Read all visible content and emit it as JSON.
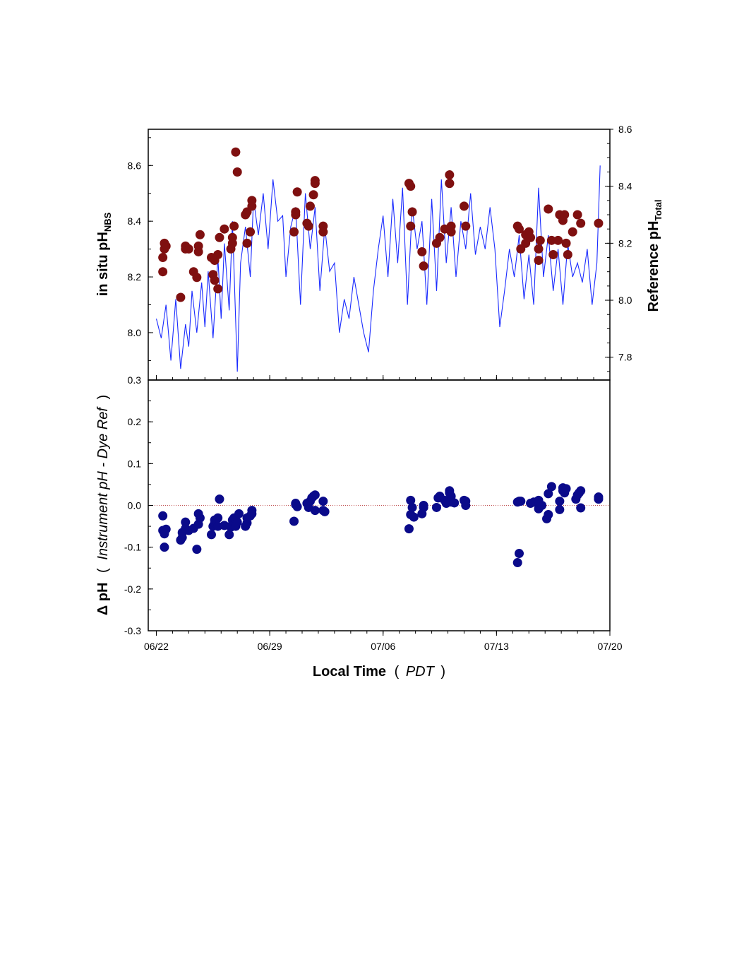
{
  "chart_data": [
    {
      "type": "line+scatter",
      "panel": "top",
      "ylabel_left": {
        "main": "in situ pH",
        "sub": "NBS"
      },
      "ylabel_right": {
        "main": "Reference pH",
        "sub": "Total"
      },
      "ylim_left": [
        7.83,
        8.73
      ],
      "yticks_left": [
        "8.0",
        "8.2",
        "8.4",
        "8.6"
      ],
      "ylim_right": [
        7.72,
        8.6
      ],
      "yticks_right": [
        "7.8",
        "8.0",
        "8.2",
        "8.4",
        "8.6"
      ],
      "xlim_days": [
        -0.5,
        28.0
      ],
      "grid": false,
      "series": [
        {
          "kind": "line",
          "axis": "left",
          "color": "#1a2bff",
          "x": [
            0,
            0.3,
            0.6,
            0.9,
            1.2,
            1.5,
            1.8,
            2.0,
            2.2,
            2.5,
            2.8,
            3.0,
            3.2,
            3.5,
            3.8,
            4.0,
            4.2,
            4.5,
            4.7,
            5.0,
            5.2,
            5.5,
            5.8,
            6.0,
            6.3,
            6.6,
            6.9,
            7.2,
            7.5,
            7.8,
            8.0,
            8.3,
            8.6,
            8.9,
            9.2,
            9.5,
            9.8,
            10.1,
            10.4,
            10.7,
            11.0,
            11.3,
            11.6,
            11.9,
            12.2,
            12.5,
            12.8,
            13.1,
            13.4,
            13.7,
            14.0,
            14.3,
            14.6,
            14.9,
            15.2,
            15.5,
            15.8,
            16.1,
            16.4,
            16.7,
            17.0,
            17.3,
            17.6,
            17.9,
            18.2,
            18.5,
            18.8,
            19.1,
            19.4,
            19.7,
            20.0,
            20.3,
            20.6,
            20.9,
            21.2,
            21.5,
            21.8,
            22.1,
            22.4,
            22.7,
            23.0,
            23.3,
            23.6,
            23.9,
            24.2,
            24.5,
            24.8,
            25.1,
            25.4,
            25.7,
            26.0,
            26.3,
            26.6,
            26.9,
            27.2,
            27.4
          ],
          "values": [
            8.05,
            7.98,
            8.1,
            7.9,
            8.12,
            7.87,
            8.03,
            7.95,
            8.15,
            8.0,
            8.18,
            8.02,
            8.22,
            7.98,
            8.27,
            8.05,
            8.32,
            8.08,
            8.4,
            7.86,
            8.25,
            8.38,
            8.2,
            8.48,
            8.35,
            8.5,
            8.3,
            8.55,
            8.4,
            8.42,
            8.2,
            8.38,
            8.45,
            8.1,
            8.5,
            8.3,
            8.45,
            8.15,
            8.38,
            8.22,
            8.25,
            8.0,
            8.12,
            8.05,
            8.2,
            8.1,
            8.0,
            7.93,
            8.15,
            8.3,
            8.42,
            8.2,
            8.48,
            8.25,
            8.52,
            8.1,
            8.45,
            8.3,
            8.4,
            8.1,
            8.48,
            8.15,
            8.55,
            8.25,
            8.45,
            8.2,
            8.4,
            8.3,
            8.5,
            8.28,
            8.38,
            8.3,
            8.45,
            8.3,
            8.02,
            8.15,
            8.3,
            8.2,
            8.35,
            8.12,
            8.28,
            8.1,
            8.52,
            8.2,
            8.35,
            8.15,
            8.3,
            8.1,
            8.32,
            8.2,
            8.25,
            8.18,
            8.3,
            8.1,
            8.25,
            8.6
          ]
        },
        {
          "kind": "scatter",
          "axis": "right",
          "color": "#7f1010",
          "x": [
            0.4,
            0.5,
            0.5,
            0.6,
            0.4,
            1.5,
            1.8,
            1.8,
            2.0,
            2.3,
            2.5,
            2.6,
            2.6,
            2.7,
            3.4,
            3.5,
            3.6,
            3.6,
            3.8,
            3.8,
            3.9,
            4.2,
            4.6,
            4.7,
            4.7,
            4.8,
            4.9,
            5.0,
            5.5,
            5.6,
            5.6,
            5.8,
            5.9,
            5.9,
            8.5,
            8.6,
            8.6,
            8.7,
            9.3,
            9.4,
            9.5,
            9.7,
            9.8,
            9.8,
            10.3,
            10.3,
            15.6,
            15.7,
            15.7,
            15.8,
            16.4,
            16.5,
            17.3,
            17.5,
            17.8,
            18.1,
            18.1,
            18.1,
            18.2,
            18.2,
            19.0,
            19.1,
            22.3,
            22.4,
            22.5,
            22.8,
            22.8,
            23.0,
            23.1,
            23.6,
            23.6,
            23.7,
            24.2,
            24.4,
            24.5,
            24.8,
            24.9,
            25.1,
            25.2,
            25.3,
            25.4,
            25.7,
            26.0,
            26.2,
            27.3
          ],
          "values": [
            8.15,
            8.18,
            8.2,
            8.19,
            8.1,
            8.01,
            8.18,
            8.19,
            8.18,
            8.1,
            8.08,
            8.17,
            8.19,
            8.23,
            8.15,
            8.09,
            8.14,
            8.07,
            8.04,
            8.16,
            8.22,
            8.25,
            8.18,
            8.22,
            8.2,
            8.26,
            8.52,
            8.45,
            8.3,
            8.2,
            8.31,
            8.24,
            8.33,
            8.35,
            8.24,
            8.31,
            8.3,
            8.38,
            8.27,
            8.26,
            8.33,
            8.37,
            8.41,
            8.42,
            8.26,
            8.24,
            8.41,
            8.4,
            8.26,
            8.31,
            8.17,
            8.12,
            8.2,
            8.22,
            8.25,
            8.44,
            8.41,
            8.41,
            8.24,
            8.26,
            8.33,
            8.26,
            8.26,
            8.25,
            8.18,
            8.2,
            8.23,
            8.24,
            8.22,
            8.14,
            8.18,
            8.21,
            8.32,
            8.21,
            8.16,
            8.21,
            8.3,
            8.28,
            8.3,
            8.2,
            8.16,
            8.24,
            8.3,
            8.27,
            8.27
          ]
        }
      ]
    },
    {
      "type": "scatter",
      "panel": "bottom",
      "ylabel": {
        "prefix": "Δ pH",
        "open": "(",
        "italic": "Instrument pH - Dye Ref",
        "close": ")"
      },
      "ylim": [
        -0.3,
        0.3
      ],
      "yticks": [
        "-0.3",
        "-0.2",
        "-0.1",
        "0.0",
        "0.1",
        "0.2",
        "0.3"
      ],
      "xlim_days": [
        -0.5,
        28.0
      ],
      "xticks": [
        "06/22",
        "06/29",
        "07/06",
        "07/13",
        "07/20"
      ],
      "xtick_days": [
        0,
        7,
        14,
        21,
        28
      ],
      "xlabel": {
        "main": "Local Time",
        "open": "(",
        "italic": "PDT",
        "close": ")"
      },
      "zero_line": true,
      "grid": false,
      "series": [
        {
          "color": "#0a0a8a",
          "x": [
            0.4,
            0.5,
            0.5,
            0.6,
            0.4,
            1.5,
            1.6,
            1.6,
            1.8,
            1.8,
            2.0,
            2.3,
            2.5,
            2.6,
            2.6,
            2.7,
            3.4,
            3.5,
            3.6,
            3.6,
            3.8,
            3.8,
            3.9,
            4.2,
            4.5,
            4.6,
            4.7,
            4.7,
            4.8,
            4.9,
            5.0,
            5.1,
            5.5,
            5.6,
            5.6,
            5.8,
            5.9,
            5.9,
            8.5,
            8.6,
            8.6,
            8.7,
            9.3,
            9.4,
            9.5,
            9.6,
            9.7,
            9.8,
            9.8,
            10.3,
            10.3,
            10.4,
            15.6,
            15.7,
            15.7,
            15.8,
            15.9,
            16.4,
            16.5,
            16.5,
            17.3,
            17.4,
            17.5,
            17.8,
            17.9,
            18.1,
            18.1,
            18.2,
            18.2,
            18.4,
            19.0,
            19.1,
            19.1,
            22.3,
            22.4,
            22.5,
            22.3,
            22.4,
            23.1,
            23.3,
            23.6,
            23.6,
            23.8,
            24.1,
            24.2,
            24.2,
            24.4,
            24.9,
            24.9,
            25.1,
            25.1,
            25.2,
            25.3,
            25.9,
            26.0,
            26.1,
            26.2,
            26.2,
            27.3,
            27.3
          ],
          "values": [
            -0.06,
            -0.068,
            -0.1,
            -0.057,
            -0.025,
            -0.083,
            -0.077,
            -0.065,
            -0.04,
            -0.055,
            -0.06,
            -0.055,
            -0.105,
            -0.02,
            -0.045,
            -0.03,
            -0.07,
            -0.05,
            -0.042,
            -0.035,
            -0.03,
            -0.05,
            0.015,
            -0.048,
            -0.07,
            -0.052,
            -0.045,
            -0.035,
            -0.03,
            -0.05,
            -0.04,
            -0.02,
            -0.05,
            -0.042,
            -0.03,
            -0.025,
            -0.012,
            -0.02,
            -0.038,
            0.005,
            0.002,
            -0.003,
            0.005,
            -0.005,
            0.01,
            0.018,
            0.022,
            0.025,
            -0.012,
            0.01,
            -0.012,
            -0.015,
            -0.056,
            -0.022,
            0.012,
            -0.005,
            -0.028,
            -0.02,
            -0.005,
            0.0,
            -0.005,
            0.018,
            0.022,
            0.012,
            0.005,
            0.03,
            0.035,
            0.022,
            0.008,
            0.006,
            0.012,
            0.0,
            0.01,
            -0.137,
            -0.115,
            0.01,
            0.008,
            0.01,
            0.005,
            0.008,
            0.012,
            -0.008,
            0.0,
            -0.032,
            -0.022,
            0.028,
            0.045,
            0.01,
            -0.01,
            0.042,
            0.035,
            0.03,
            0.04,
            0.015,
            0.025,
            0.03,
            0.035,
            -0.006,
            0.02,
            0.015
          ]
        }
      ]
    }
  ]
}
